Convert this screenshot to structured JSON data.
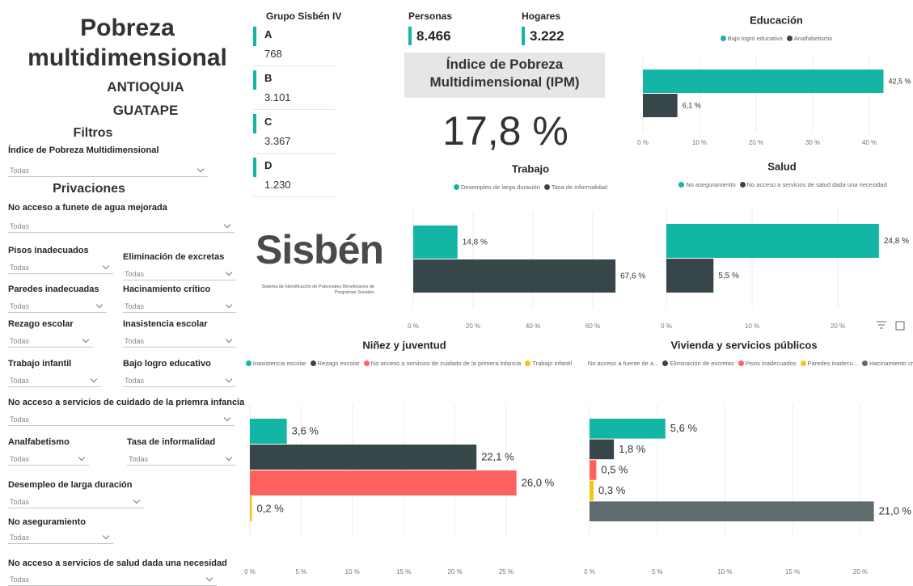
{
  "header": {
    "title": "Pobreza multidimensional",
    "department": "ANTIOQUIA",
    "municipality": "GUATAPE"
  },
  "filters": {
    "title": "Filtros",
    "privations_title": "Privaciones",
    "dropdowns": [
      {
        "label": "Índice de Pobreza Multidimensional",
        "value": "Todas"
      },
      {
        "label": "No acceso a funete de agua mejorada",
        "value": "Todas"
      },
      {
        "label": "Pisos inadecuados",
        "value": "Todas"
      },
      {
        "label": "Eliminación de excretas",
        "value": "Todas"
      },
      {
        "label": "Paredes inadecuadas",
        "value": "Todas"
      },
      {
        "label": "Hacinamiento crítico",
        "value": "Todas"
      },
      {
        "label": "Rezago escolar",
        "value": "Todas"
      },
      {
        "label": "Inasistencia escolar",
        "value": "Todas"
      },
      {
        "label": "Trabajo infantil",
        "value": "Todas"
      },
      {
        "label": "Bajo logro educativo",
        "value": "Todas"
      },
      {
        "label": "No acceso a servicios de cuidado de la priemra infancia",
        "value": "Todas"
      },
      {
        "label": "Analfabetismo",
        "value": "Todas"
      },
      {
        "label": "Tasa de informalidad",
        "value": "Todas"
      },
      {
        "label": "Desempleo de larga duración",
        "value": "Todas"
      },
      {
        "label": "No aseguramiento",
        "value": "Todas"
      },
      {
        "label": "No acceso a servicios de salud dada una necesidad",
        "value": "Todas"
      }
    ]
  },
  "sisben_groups": {
    "title": "Grupo Sisbén IV",
    "items": [
      {
        "group": "A",
        "value": "768"
      },
      {
        "group": "B",
        "value": "3.101"
      },
      {
        "group": "C",
        "value": "3.367"
      },
      {
        "group": "D",
        "value": "1.230"
      }
    ]
  },
  "kpis": [
    {
      "label": "Personas",
      "value": "8.466"
    },
    {
      "label": "Hogares",
      "value": "3.222"
    }
  ],
  "ipm_card": {
    "title": "Índice de Pobreza Multidimensional (IPM)",
    "value": "17,8 %"
  },
  "logo": {
    "name": "Sisbén",
    "subtitle": "Sistema de Identificación de Potenciales Beneficiarios de Programas Sociales"
  },
  "chart_data": [
    {
      "type": "barh",
      "title": "Educación",
      "categories": [
        null
      ],
      "series": [
        {
          "name": "Bajo logro educativo",
          "color": "#13b5a5",
          "values": [
            42.5
          ],
          "value_labels": [
            "42,5 %"
          ]
        },
        {
          "name": "Analfabetismo",
          "color": "#374649",
          "values": [
            6.1
          ],
          "value_labels": [
            "6,1 %"
          ]
        }
      ],
      "xlim": [
        0,
        43
      ],
      "xticks": [
        {
          "value": 0,
          "label": "0 %"
        },
        {
          "value": 10,
          "label": "10 %"
        },
        {
          "value": 20,
          "label": "20 %"
        },
        {
          "value": 30,
          "label": "30 %"
        },
        {
          "value": 40,
          "label": "40 %"
        }
      ],
      "grid": true
    },
    {
      "type": "barh",
      "title": "Trabajo",
      "categories": [
        null
      ],
      "series": [
        {
          "name": "Desempleo de larga duración",
          "color": "#13b5a5",
          "values": [
            14.8
          ],
          "value_labels": [
            "14,8 %"
          ]
        },
        {
          "name": "Tasa de informalidad",
          "color": "#374649",
          "values": [
            67.6
          ],
          "value_labels": [
            "67,6 %"
          ]
        }
      ],
      "xlim": [
        0,
        70
      ],
      "xticks": [
        {
          "value": 0,
          "label": "0 %"
        },
        {
          "value": 20,
          "label": "20 %"
        },
        {
          "value": 40,
          "label": "40 %"
        },
        {
          "value": 60,
          "label": "60 %"
        }
      ],
      "grid": true
    },
    {
      "type": "barh",
      "title": "Salud",
      "categories": [
        null
      ],
      "series": [
        {
          "name": "No aseguramiento",
          "color": "#13b5a5",
          "values": [
            24.8
          ],
          "value_labels": [
            "24,8 %"
          ]
        },
        {
          "name": "No acceso a servicios de salud dada una necesidad",
          "color": "#374649",
          "values": [
            5.5
          ],
          "value_labels": [
            "5,5 %"
          ]
        }
      ],
      "xlim": [
        0,
        25
      ],
      "xticks": [
        {
          "value": 0,
          "label": "0 %"
        },
        {
          "value": 10,
          "label": "10 %"
        },
        {
          "value": 20,
          "label": "20 %"
        }
      ],
      "grid": true
    },
    {
      "type": "barh",
      "title": "Niñez y juventud",
      "categories": [
        null
      ],
      "series": [
        {
          "name": "Inasistencia escolar",
          "color": "#13b5a5",
          "values": [
            3.6
          ],
          "value_labels": [
            "3,6 %"
          ]
        },
        {
          "name": "Rezago escolar",
          "color": "#374649",
          "values": [
            22.1
          ],
          "value_labels": [
            "22,1 %"
          ]
        },
        {
          "name": "No acceso a servicios de cuidado de la primera infancia",
          "color": "#fd625e",
          "values": [
            26.0
          ],
          "value_labels": [
            "26,0 %"
          ]
        },
        {
          "name": "Trabajo infantil",
          "color": "#f2c80f",
          "values": [
            0.2
          ],
          "value_labels": [
            "0,2 %"
          ]
        }
      ],
      "xlim": [
        0,
        26.5
      ],
      "xticks": [
        {
          "value": 0,
          "label": "0 %"
        },
        {
          "value": 5,
          "label": "5 %"
        },
        {
          "value": 10,
          "label": "10 %"
        },
        {
          "value": 15,
          "label": "15 %"
        },
        {
          "value": 20,
          "label": "20 %"
        },
        {
          "value": 25,
          "label": "25 %"
        }
      ],
      "grid": true
    },
    {
      "type": "barh",
      "title": "Vivienda y servicios públicos",
      "categories": [
        null
      ],
      "series": [
        {
          "name": "No acceso a fuente de a...",
          "color": "#13b5a5",
          "values": [
            5.6
          ],
          "value_labels": [
            "5,6 %"
          ]
        },
        {
          "name": "Eliminación de excretas",
          "color": "#374649",
          "values": [
            1.8
          ],
          "value_labels": [
            "1,8 %"
          ]
        },
        {
          "name": "Pisos inadecuados",
          "color": "#fd625e",
          "values": [
            0.5
          ],
          "value_labels": [
            "0,5 %"
          ]
        },
        {
          "name": "Paredes inadecu...",
          "color": "#f2c80f",
          "values": [
            0.3
          ],
          "value_labels": [
            "0,3 %"
          ]
        },
        {
          "name": "Hacinamiento cri...",
          "color": "#5f6b6d",
          "values": [
            21.0
          ],
          "value_labels": [
            "21,0 %"
          ]
        }
      ],
      "xlim": [
        0,
        21.5
      ],
      "xticks": [
        {
          "value": 0,
          "label": "0 %"
        },
        {
          "value": 5,
          "label": "5 %"
        },
        {
          "value": 10,
          "label": "10 %"
        },
        {
          "value": 15,
          "label": "15 %"
        },
        {
          "value": 20,
          "label": "20 %"
        }
      ],
      "grid": true
    }
  ]
}
